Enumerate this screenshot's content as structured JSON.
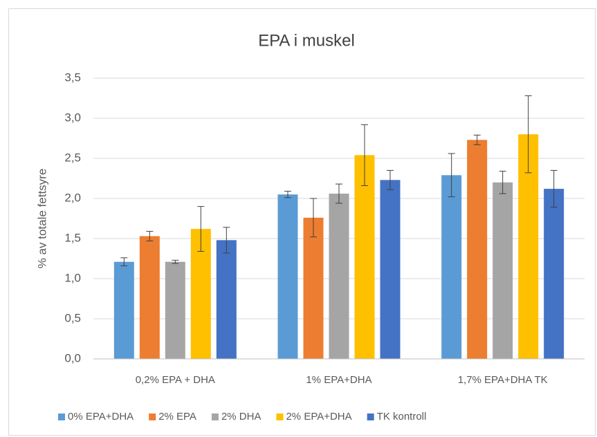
{
  "chart_data": {
    "type": "bar",
    "title": "EPA i muskel",
    "y_label": "% av totale fettsyre",
    "categories": [
      "0,2% EPA + DHA",
      "1% EPA+DHA",
      "1,7% EPA+DHA TK"
    ],
    "series": [
      {
        "name": "0% EPA+DHA",
        "color": "#5b9bd5",
        "values": [
          1.21,
          2.05,
          2.29
        ],
        "errors": [
          0.05,
          0.04,
          0.27
        ]
      },
      {
        "name": "2% EPA",
        "color": "#ed7d31",
        "values": [
          1.53,
          1.76,
          2.73
        ],
        "errors": [
          0.06,
          0.24,
          0.06
        ]
      },
      {
        "name": "2% DHA",
        "color": "#a5a5a5",
        "values": [
          1.21,
          2.06,
          2.2
        ],
        "errors": [
          0.02,
          0.12,
          0.14
        ]
      },
      {
        "name": "2% EPA+DHA",
        "color": "#ffc000",
        "values": [
          1.62,
          2.54,
          2.8
        ],
        "errors": [
          0.28,
          0.38,
          0.48
        ]
      },
      {
        "name": "TK kontroll",
        "color": "#4472c4",
        "values": [
          1.48,
          2.23,
          2.12
        ],
        "errors": [
          0.16,
          0.12,
          0.23
        ]
      }
    ],
    "ylim": [
      0,
      3.5
    ],
    "yticks": [
      {
        "value": 0,
        "label": "0,0"
      },
      {
        "value": 0.5,
        "label": "0,5"
      },
      {
        "value": 1,
        "label": "1,0"
      },
      {
        "value": 1.5,
        "label": "1,5"
      },
      {
        "value": 2,
        "label": "2,0"
      },
      {
        "value": 2.5,
        "label": "2,5"
      },
      {
        "value": 3,
        "label": "3,0"
      },
      {
        "value": 3.5,
        "label": "3,5"
      }
    ],
    "grid": true,
    "legend": "bottom"
  }
}
